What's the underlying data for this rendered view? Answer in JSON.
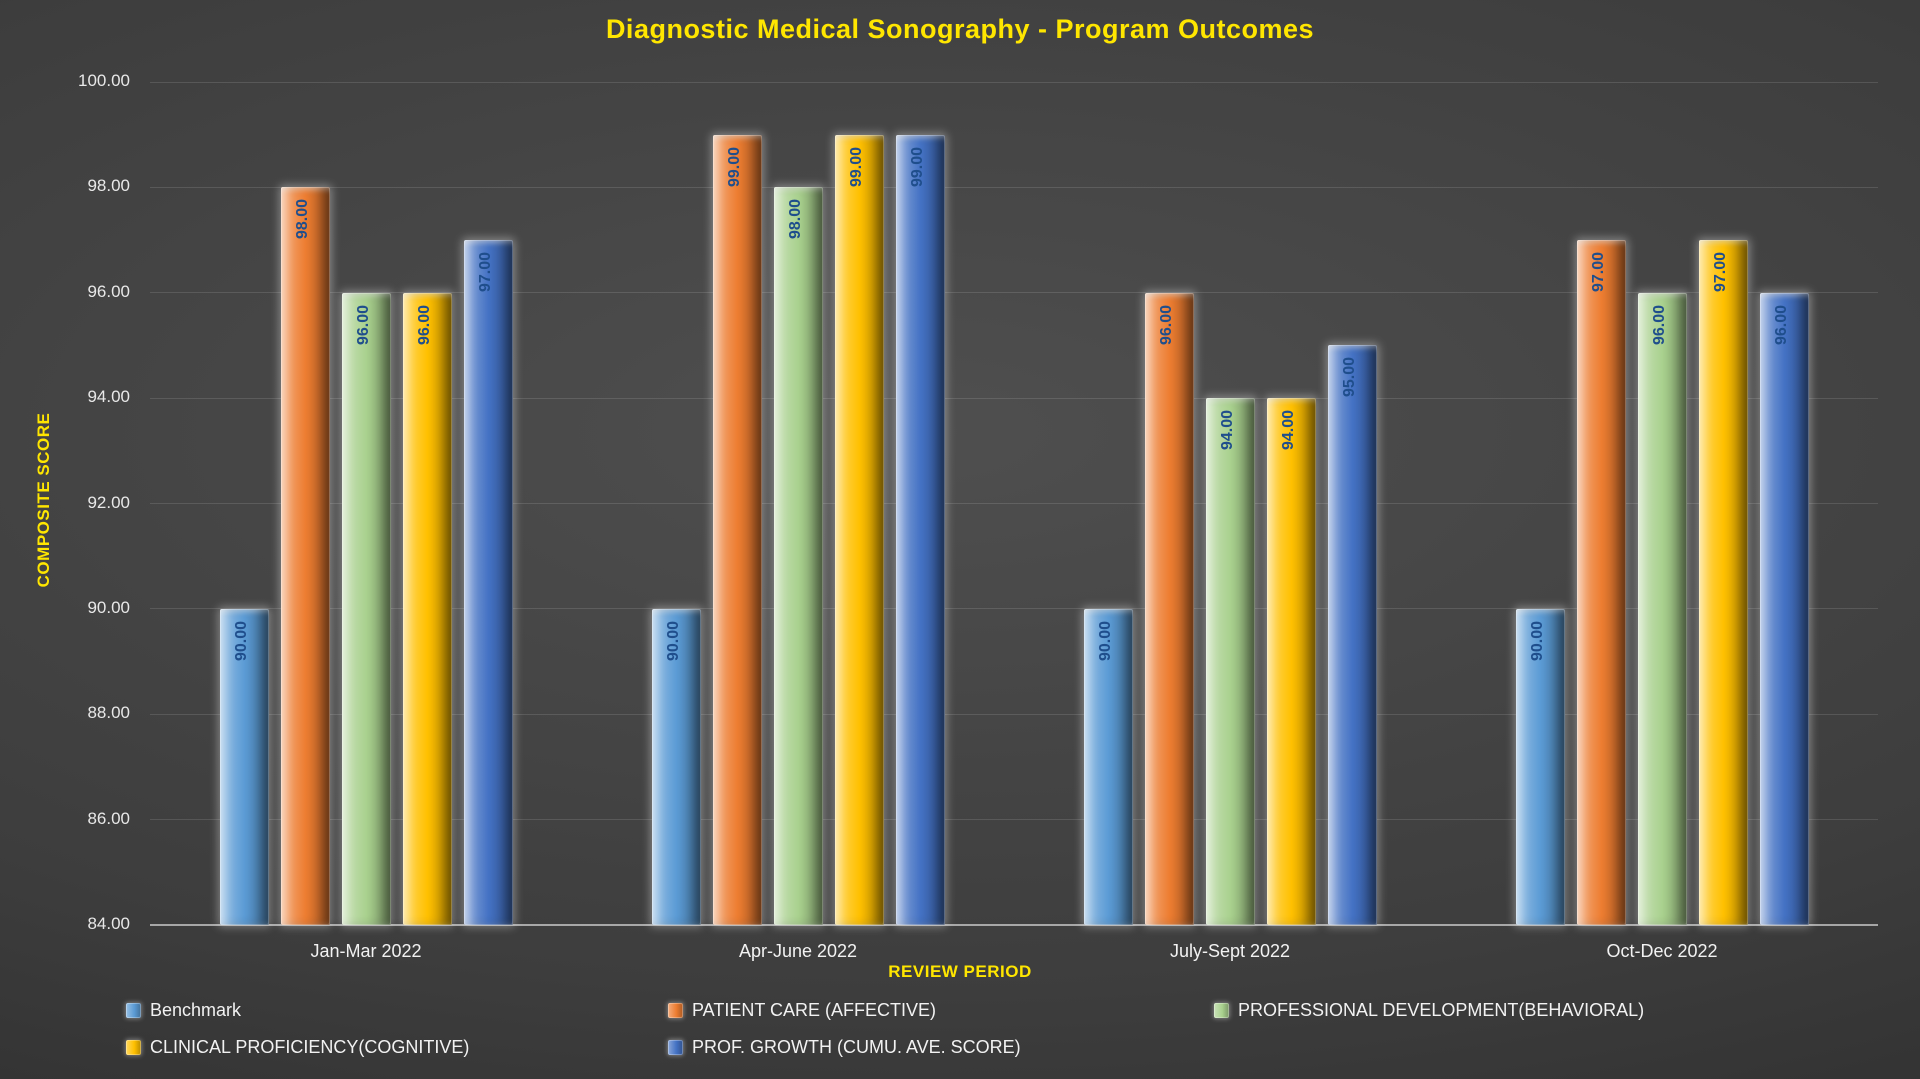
{
  "title": "Diagnostic Medical Sonography - Program Outcomes",
  "chart_data": {
    "type": "bar",
    "title": "Diagnostic Medical Sonography - Program Outcomes",
    "xlabel": "REVIEW PERIOD",
    "ylabel": "COMPOSITE SCORE",
    "categories": [
      "Jan-Mar 2022",
      "Apr-June 2022",
      "July-Sept 2022",
      "Oct-Dec 2022"
    ],
    "series": [
      {
        "name": "Benchmark",
        "color": "#5B9BD5",
        "values": [
          90,
          90,
          90,
          90
        ]
      },
      {
        "name": "PATIENT CARE (AFFECTIVE)",
        "color": "#ED7D31",
        "values": [
          98,
          99,
          96,
          97
        ]
      },
      {
        "name": "PROFESSIONAL DEVELOPMENT(BEHAVIORAL)",
        "color": "#A9D18E",
        "values": [
          96,
          98,
          94,
          96
        ]
      },
      {
        "name": "CLINICAL PROFICIENCY(COGNITIVE)",
        "color": "#FFC000",
        "values": [
          96,
          99,
          94,
          97
        ]
      },
      {
        "name": "PROF. GROWTH (CUMU. AVE. SCORE)",
        "color": "#4472C4",
        "values": [
          97,
          99,
          95,
          96
        ]
      }
    ],
    "ylim": [
      84,
      100
    ],
    "ytick_step": 2,
    "ytick_labels": [
      "84.00",
      "86.00",
      "88.00",
      "90.00",
      "92.00",
      "94.00",
      "96.00",
      "98.00",
      "100.00"
    ],
    "value_label_decimals": 2,
    "grid": true,
    "legend_position": "bottom",
    "colors": {
      "background_center": "#4f4f4f",
      "background_edge": "#272727",
      "title_text": "#FFE600",
      "axis_text": "#E8E8E8",
      "bar_value_text": "#1F4E8C"
    }
  }
}
